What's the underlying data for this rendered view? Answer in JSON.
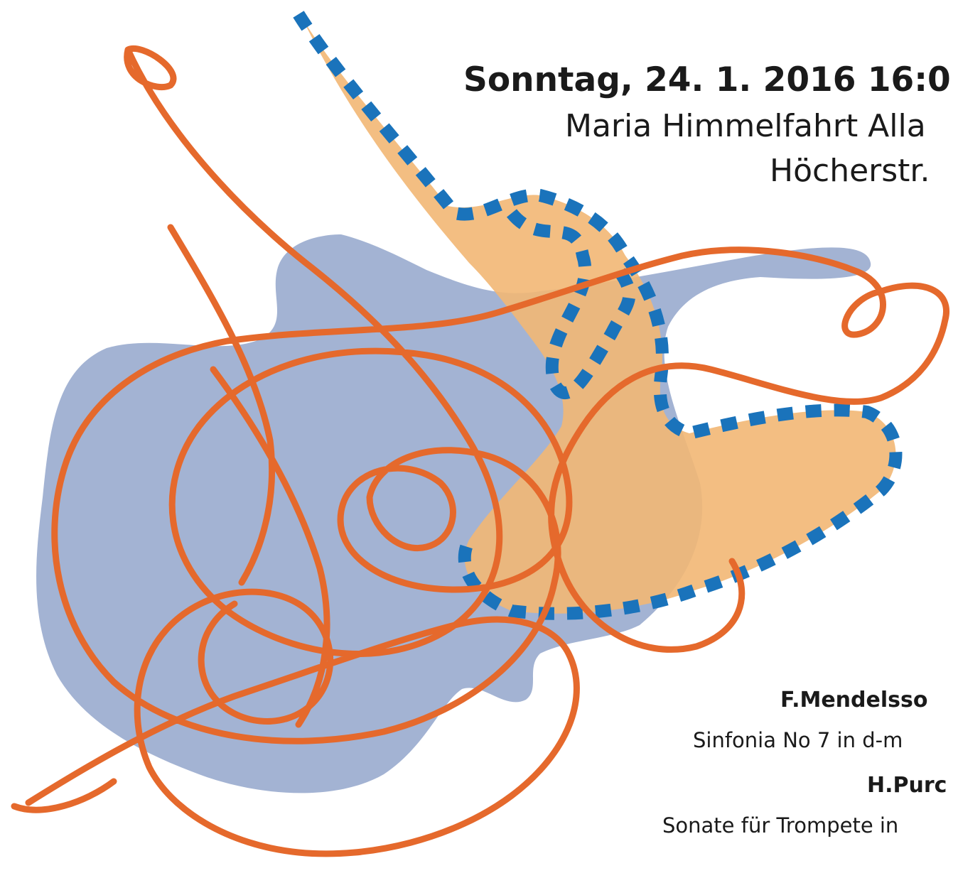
{
  "poster": {
    "date": "Sonntag, 24. 1. 2016  16:0",
    "venue": "Maria Himmelfahrt Alla",
    "street": "Höcherstr.",
    "program": [
      {
        "composer": "F.Mendelsso",
        "work": "Sinfonia No 7 in d-m"
      },
      {
        "composer": "H.Purc",
        "work": "Sonate für Trompete in"
      }
    ]
  }
}
